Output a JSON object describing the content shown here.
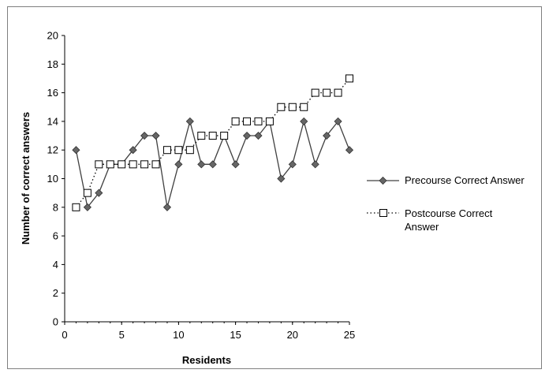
{
  "chart_data": {
    "type": "line",
    "xlabel": "Residents",
    "ylabel": "Number of correct answers",
    "xlim": [
      0,
      25
    ],
    "ylim": [
      0,
      20
    ],
    "x_ticks": [
      "0",
      "5",
      "10",
      "15",
      "20",
      "25"
    ],
    "y_ticks": [
      "0",
      "2",
      "4",
      "6",
      "8",
      "10",
      "12",
      "14",
      "16",
      "18",
      "20"
    ],
    "legend_position": "right",
    "grid": false,
    "x": [
      1,
      2,
      3,
      4,
      5,
      6,
      7,
      8,
      9,
      10,
      11,
      12,
      13,
      14,
      15,
      16,
      17,
      18,
      19,
      20,
      21,
      22,
      23,
      24,
      25
    ],
    "series": [
      {
        "name": "Precourse Correct Answer",
        "marker": "diamond",
        "line": "solid",
        "color": "#404040",
        "values": [
          12,
          8,
          9,
          11,
          11,
          12,
          13,
          13,
          8,
          11,
          14,
          11,
          11,
          13,
          11,
          13,
          13,
          14,
          10,
          11,
          14,
          11,
          13,
          14,
          12
        ]
      },
      {
        "name_lines": [
          "Postcourse Correct",
          "Answer"
        ],
        "marker": "square-open",
        "line": "dotted",
        "color": "#000000",
        "values": [
          8,
          9,
          11,
          11,
          11,
          11,
          11,
          11,
          12,
          12,
          12,
          13,
          13,
          13,
          14,
          14,
          14,
          14,
          15,
          15,
          15,
          16,
          16,
          16,
          17
        ]
      }
    ]
  }
}
